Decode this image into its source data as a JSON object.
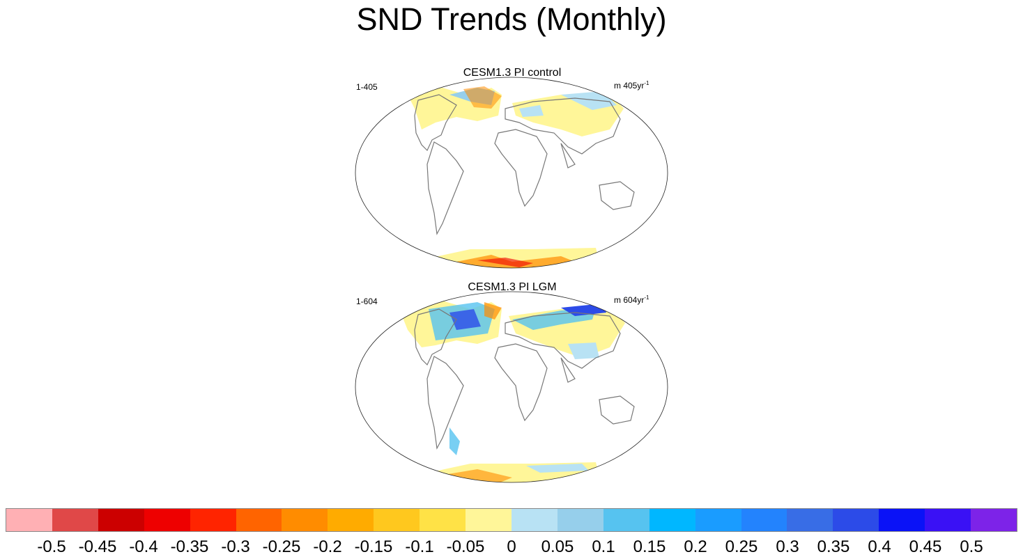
{
  "title": "SND Trends (Monthly)",
  "panels": [
    {
      "title": "CESM1.3 PI control",
      "left_label": "1-405",
      "right_label": "m 405yr",
      "right_sup": "-1"
    },
    {
      "title": "CESM1.3 PI LGM",
      "left_label": "1-604",
      "right_label": "m 604yr",
      "right_sup": "-1"
    }
  ],
  "colorbar": {
    "colors": [
      "#ffb0b4",
      "#e04848",
      "#cc0000",
      "#ee0000",
      "#ff2400",
      "#ff6400",
      "#ff8c00",
      "#ffab00",
      "#ffc81e",
      "#ffe246",
      "#fff699",
      "#b8e2f4",
      "#96cfeb",
      "#56c3f0",
      "#00b7ff",
      "#1a9cff",
      "#2383fd",
      "#386de6",
      "#2c4be8",
      "#0a12f7",
      "#3a11f5",
      "#7d23e8"
    ],
    "labels": [
      "-0.5",
      "-0.45",
      "-0.4",
      "-0.35",
      "-0.3",
      "-0.25",
      "-0.2",
      "-0.15",
      "-0.1",
      "-0.05",
      "0",
      "0.05",
      "0.1",
      "0.15",
      "0.2",
      "0.25",
      "0.3",
      "0.35",
      "0.4",
      "0.45",
      "0.5"
    ]
  }
}
